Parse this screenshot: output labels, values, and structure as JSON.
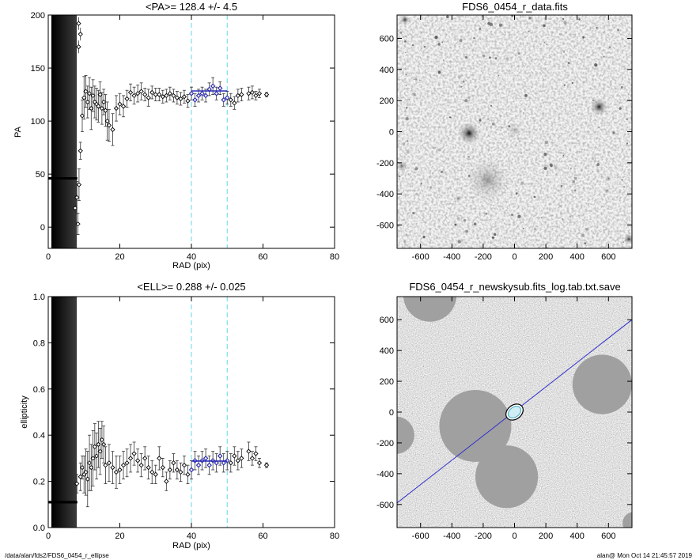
{
  "footer": {
    "path": "/data/alan/fds2/FDS6_0454_r_ellipse",
    "stamp": "alan@  Mon Oct 14 21:45:57 2019"
  },
  "chart_data": [
    {
      "id": "pa",
      "type": "scatter",
      "title": "<PA>= 128.4 +/-   4.5",
      "xlabel": "RAD (pix)",
      "ylabel": "PA",
      "xlim": [
        0,
        80
      ],
      "ylim": [
        -20,
        200
      ],
      "xticks": [
        0,
        20,
        40,
        60,
        80
      ],
      "yticks": [
        0,
        50,
        100,
        150,
        200
      ],
      "vlines": [
        40,
        50
      ],
      "mean_line": {
        "x": [
          40,
          50
        ],
        "y": 128.4,
        "color": "#2b2bb8"
      },
      "inner_dark_band": [
        1,
        8
      ],
      "inner_flat_value": 46,
      "series_x": [
        7.5,
        8,
        8.3,
        8.6,
        9,
        9.5,
        10,
        10.5,
        11,
        11.5,
        12,
        12.5,
        13,
        13.5,
        14,
        14.5,
        15,
        15.5,
        16,
        16.5,
        17,
        18,
        19,
        20,
        21,
        22,
        23,
        24,
        25,
        26,
        27,
        28,
        29,
        30,
        31,
        32,
        33,
        34,
        35,
        36,
        37,
        38,
        39,
        40,
        41,
        42,
        43,
        44,
        45,
        46,
        47,
        48,
        49,
        50,
        51,
        52,
        53,
        54,
        56,
        57,
        58,
        59,
        61
      ],
      "series_y": [
        18,
        28,
        3,
        40,
        72,
        105,
        122,
        128,
        118,
        126,
        112,
        124,
        118,
        116,
        114,
        125,
        112,
        118,
        110,
        100,
        96,
        92,
        112,
        116,
        114,
        121,
        127,
        124,
        126,
        128,
        125,
        122,
        127,
        125,
        125,
        123,
        124,
        126,
        124,
        122,
        121,
        123,
        119,
        126,
        120,
        124,
        126,
        124,
        130,
        133,
        126,
        131,
        120,
        122,
        120,
        117,
        124,
        125,
        126,
        127,
        124,
        126,
        125
      ],
      "series_err": [
        12,
        15,
        10,
        15,
        8,
        15,
        20,
        15,
        15,
        15,
        20,
        15,
        15,
        15,
        15,
        12,
        15,
        12,
        15,
        18,
        15,
        15,
        12,
        10,
        10,
        8,
        8,
        8,
        8,
        8,
        6,
        8,
        6,
        6,
        6,
        6,
        6,
        6,
        6,
        6,
        6,
        6,
        6,
        6,
        6,
        6,
        6,
        6,
        6,
        8,
        6,
        6,
        6,
        6,
        6,
        6,
        6,
        6,
        6,
        6,
        4,
        4,
        2
      ],
      "outliers": [
        [
          8.5,
          192
        ],
        [
          9,
          182
        ],
        [
          8.5,
          170
        ]
      ]
    },
    {
      "id": "ell",
      "type": "scatter",
      "title": "<ELL>= 0.288 +/-  0.025",
      "xlabel": "RAD (pix)",
      "ylabel": "ellipticity",
      "xlim": [
        0,
        80
      ],
      "ylim": [
        0,
        1
      ],
      "xticks": [
        0,
        20,
        40,
        60,
        80
      ],
      "yticks": [
        0.0,
        0.2,
        0.4,
        0.6,
        0.8,
        1.0
      ],
      "vlines": [
        40,
        50
      ],
      "mean_line": {
        "x": [
          40,
          50
        ],
        "y": 0.288,
        "color": "#2b2bb8"
      },
      "inner_dark_band": [
        1,
        8
      ],
      "inner_flat_value": 0.11,
      "series_x": [
        8,
        9,
        9.5,
        10,
        10.5,
        11,
        11.5,
        12,
        12.5,
        13,
        13.5,
        14,
        14.5,
        15,
        15.5,
        16,
        17,
        18,
        19,
        20,
        21,
        22,
        23,
        24,
        25,
        26,
        27,
        28,
        29,
        30,
        31,
        32,
        33,
        34,
        35,
        36,
        37,
        38,
        39,
        40,
        41,
        42,
        43,
        44,
        45,
        46,
        47,
        48,
        49,
        50,
        51,
        52,
        53,
        54,
        56,
        57,
        58,
        59,
        61
      ],
      "series_y": [
        0.19,
        0.22,
        0.26,
        0.23,
        0.24,
        0.21,
        0.28,
        0.26,
        0.3,
        0.35,
        0.31,
        0.36,
        0.33,
        0.38,
        0.36,
        0.27,
        0.28,
        0.26,
        0.24,
        0.25,
        0.27,
        0.28,
        0.3,
        0.32,
        0.29,
        0.27,
        0.3,
        0.26,
        0.24,
        0.23,
        0.3,
        0.26,
        0.2,
        0.25,
        0.28,
        0.25,
        0.24,
        0.27,
        0.23,
        0.25,
        0.29,
        0.27,
        0.29,
        0.3,
        0.27,
        0.29,
        0.28,
        0.31,
        0.28,
        0.29,
        0.28,
        0.31,
        0.29,
        0.3,
        0.33,
        0.3,
        0.32,
        0.28,
        0.27
      ],
      "series_err": [
        0.04,
        0.06,
        0.05,
        0.08,
        0.1,
        0.12,
        0.12,
        0.1,
        0.12,
        0.1,
        0.1,
        0.1,
        0.1,
        0.08,
        0.08,
        0.08,
        0.08,
        0.07,
        0.07,
        0.06,
        0.06,
        0.06,
        0.06,
        0.05,
        0.05,
        0.05,
        0.05,
        0.05,
        0.05,
        0.04,
        0.05,
        0.04,
        0.04,
        0.04,
        0.04,
        0.04,
        0.04,
        0.04,
        0.04,
        0.04,
        0.04,
        0.04,
        0.04,
        0.04,
        0.04,
        0.04,
        0.04,
        0.04,
        0.04,
        0.04,
        0.04,
        0.04,
        0.04,
        0.04,
        0.04,
        0.03,
        0.03,
        0.02,
        0.01
      ]
    },
    {
      "id": "data-image",
      "type": "heatmap",
      "title": "FDS6_0454_r_data.fits",
      "xlim": [
        -750,
        750
      ],
      "ylim": [
        -750,
        750
      ],
      "xticks": [
        -600,
        -400,
        -200,
        0,
        200,
        400,
        600
      ],
      "yticks": [
        -600,
        -400,
        -200,
        0,
        200,
        400,
        600
      ],
      "colormap": "inverted grayscale",
      "sources": [
        {
          "x": -290,
          "y": -10,
          "r": 70,
          "peak": 0.95
        },
        {
          "x": 540,
          "y": 160,
          "r": 55,
          "peak": 0.9
        },
        {
          "x": -170,
          "y": -310,
          "r": 140,
          "peak": 0.35
        },
        {
          "x": 0,
          "y": 10,
          "r": 50,
          "peak": 0.25
        },
        {
          "x": -700,
          "y": 720,
          "r": 30,
          "peak": 0.9
        },
        {
          "x": -720,
          "y": -220,
          "r": 35,
          "peak": 0.6
        },
        {
          "x": 730,
          "y": -690,
          "r": 35,
          "peak": 0.8
        },
        {
          "x": 600,
          "y": -300,
          "r": 20,
          "peak": 0.5
        },
        {
          "x": -360,
          "y": -430,
          "r": 20,
          "peak": 0.6
        },
        {
          "x": 590,
          "y": -380,
          "r": 20,
          "peak": 0.5
        }
      ]
    },
    {
      "id": "model-image",
      "type": "heatmap",
      "title": "FDS6_0454_r_newskysub.fits_log.tab.txt.save",
      "xlim": [
        -750,
        750
      ],
      "ylim": [
        -750,
        750
      ],
      "xticks": [
        -600,
        -400,
        -200,
        0,
        200,
        400,
        600
      ],
      "yticks": [
        -600,
        -400,
        -200,
        0,
        200,
        400,
        600
      ],
      "colormap": "grayscale noise with masked regions",
      "mask_color": "#a0a0a0",
      "masks": [
        {
          "x": -250,
          "y": -90,
          "r": 230
        },
        {
          "x": -50,
          "y": -420,
          "r": 200
        },
        {
          "x": 560,
          "y": 180,
          "r": 190
        },
        {
          "x": -540,
          "y": 760,
          "r": 170
        },
        {
          "x": -760,
          "y": -150,
          "r": 120
        },
        {
          "x": 760,
          "y": -720,
          "r": 70
        }
      ],
      "pa_line": {
        "x1": -750,
        "y1": -590,
        "x2": 750,
        "y2": 600,
        "color": "#3030cc"
      },
      "ellipse": {
        "x": 0,
        "y": 0,
        "a": 60,
        "b": 45,
        "angle": 38
      }
    }
  ]
}
